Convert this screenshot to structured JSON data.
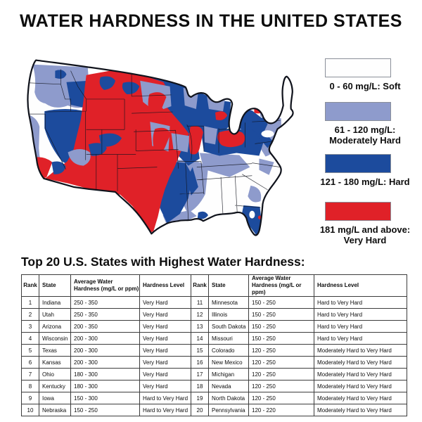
{
  "page": {
    "title": "WATER HARDNESS IN THE UNITED STATES"
  },
  "map": {
    "description": "Choropleth map of water hardness regions in the contiguous United States",
    "colors": {
      "soft": "#fefefe",
      "moderately_hard": "#8e9bcc",
      "hard": "#1c4b9d",
      "very_hard": "#e02128",
      "outline": "#10131c"
    }
  },
  "legend": {
    "items": [
      {
        "label": "0 - 60 mg/L: Soft",
        "color": "#fefefe"
      },
      {
        "label": "61 - 120 mg/L:\nModerately Hard",
        "color": "#8e9bcc"
      },
      {
        "label": "121 - 180 mg/L: Hard",
        "color": "#1c4b9d"
      },
      {
        "label": "181 mg/L and above:\nVery Hard",
        "color": "#e02128"
      }
    ]
  },
  "table": {
    "title": "Top 20 U.S. States with Highest Water Hardness:",
    "headers": [
      "Rank",
      "State",
      "Average Water Hardness (mg/L or ppm)",
      "Hardness Level",
      "Rank",
      "State",
      "Average Water Hardness (mg/L or ppm)",
      "Hardness Level"
    ],
    "rows": [
      [
        "1",
        "Indiana",
        "250 - 350",
        "Very Hard",
        "11",
        "Minnesota",
        "150 - 250",
        "Hard to Very Hard"
      ],
      [
        "2",
        "Utah",
        "250 - 350",
        "Very Hard",
        "12",
        "Illinois",
        "150 - 250",
        "Hard to Very Hard"
      ],
      [
        "3",
        "Arizona",
        "200 - 350",
        "Very Hard",
        "13",
        "South Dakota",
        "150 - 250",
        "Hard to Very Hard"
      ],
      [
        "4",
        "Wisconsin",
        "200 - 300",
        "Very Hard",
        "14",
        "Missouri",
        "150 - 250",
        "Hard to Very Hard"
      ],
      [
        "5",
        "Texas",
        "200 - 300",
        "Very Hard",
        "15",
        "Colorado",
        "120 - 250",
        "Moderately Hard to Very Hard"
      ],
      [
        "6",
        "Kansas",
        "200 - 300",
        "Very Hard",
        "16",
        "New Mexico",
        "120 - 250",
        "Moderately Hard to Very Hard"
      ],
      [
        "7",
        "Ohio",
        "180 - 300",
        "Very Hard",
        "17",
        "Michigan",
        "120 - 250",
        "Moderately Hard to Very Hard"
      ],
      [
        "8",
        "Kentucky",
        "180 - 300",
        "Very Hard",
        "18",
        "Nevada",
        "120 - 250",
        "Moderately Hard to Very Hard"
      ],
      [
        "9",
        "Iowa",
        "150 - 300",
        "Hard to Very Hard",
        "19",
        "North Dakota",
        "120 - 250",
        "Moderately Hard to Very Hard"
      ],
      [
        "10",
        "Nebraska",
        "150 - 250",
        "Hard to Very Hard",
        "20",
        "Pennsylvania",
        "120 - 220",
        "Moderately Hard to Very Hard"
      ]
    ]
  }
}
